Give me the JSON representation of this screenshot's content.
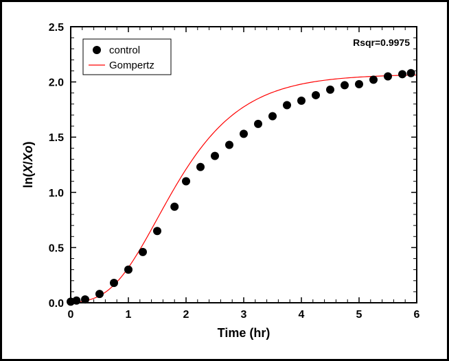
{
  "chart": {
    "type": "scatter+line",
    "xlabel": "Time (hr)",
    "ylabel": "ln(X/Xo)",
    "xlim": [
      0,
      6
    ],
    "ylim": [
      0,
      2.5
    ],
    "xtick_step": 1,
    "ytick_step": 0.5,
    "minor_xticks": 4,
    "minor_yticks": 4,
    "background_color": "#ffffff",
    "frame_color": "#000000",
    "axis_line_width": 2,
    "tick_length_major": 8,
    "tick_length_minor": 5,
    "label_fontsize": 18,
    "tick_fontsize": 16,
    "annotation": {
      "text": "Rsqr=0.9975",
      "fontsize": 14,
      "fontweight": "bold",
      "position": "top-right"
    },
    "legend": {
      "position": "top-left-inside",
      "border_color": "#000000",
      "background": "#ffffff",
      "items": [
        {
          "label": "control",
          "type": "marker",
          "marker": "circle",
          "color": "#000000"
        },
        {
          "label": "Gompertz",
          "type": "line",
          "color": "#ff0000",
          "line_width": 1.2
        }
      ]
    },
    "series_scatter": {
      "name": "control",
      "marker": "circle",
      "marker_size": 6,
      "color": "#000000",
      "points": [
        [
          0.0,
          0.01
        ],
        [
          0.1,
          0.02
        ],
        [
          0.25,
          0.03
        ],
        [
          0.5,
          0.08
        ],
        [
          0.75,
          0.18
        ],
        [
          1.0,
          0.3
        ],
        [
          1.25,
          0.46
        ],
        [
          1.5,
          0.65
        ],
        [
          1.8,
          0.87
        ],
        [
          2.0,
          1.1
        ],
        [
          2.25,
          1.23
        ],
        [
          2.5,
          1.33
        ],
        [
          2.75,
          1.43
        ],
        [
          3.0,
          1.53
        ],
        [
          3.25,
          1.62
        ],
        [
          3.5,
          1.69
        ],
        [
          3.75,
          1.79
        ],
        [
          4.0,
          1.83
        ],
        [
          4.25,
          1.88
        ],
        [
          4.5,
          1.93
        ],
        [
          4.75,
          1.97
        ],
        [
          5.0,
          1.98
        ],
        [
          5.25,
          2.02
        ],
        [
          5.5,
          2.05
        ],
        [
          5.75,
          2.07
        ],
        [
          5.9,
          2.08
        ]
      ]
    },
    "series_line": {
      "name": "Gompertz",
      "color": "#ff0000",
      "line_width": 1.2,
      "gompertz_params": {
        "A": 2.07,
        "mu": 0.95,
        "lambda": 0.7
      },
      "_note": "y = A * exp(-exp((mu*e/A)*(lambda - t) + 1)) sampled 0..6"
    }
  }
}
